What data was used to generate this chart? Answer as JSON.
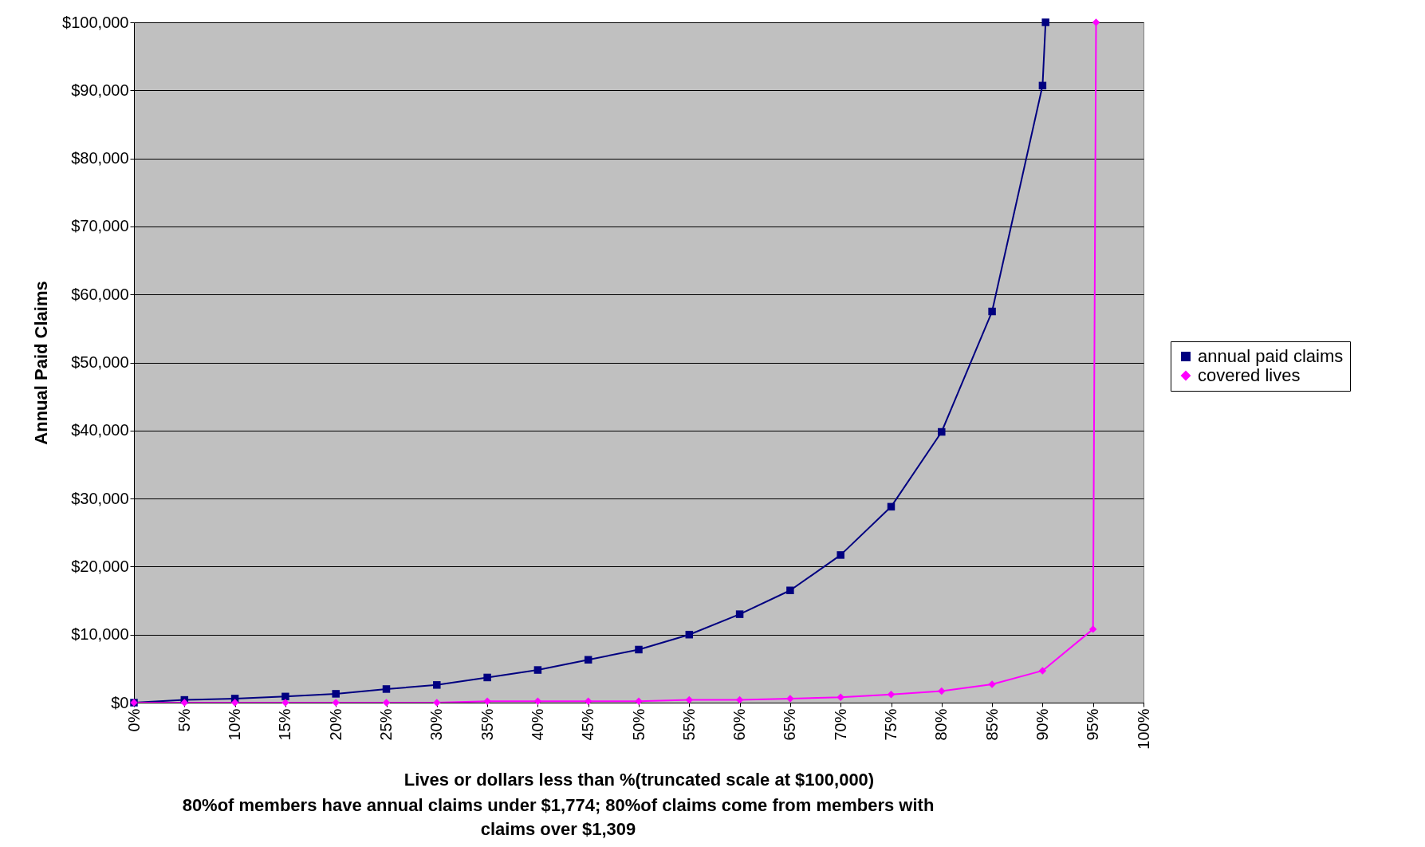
{
  "chart_data": {
    "type": "line",
    "ylabel": "Annual Paid Claims",
    "xlabel": "Lives or dollars less than %(truncated scale at $100,000)",
    "annotations": [
      "80%of members have annual claims under $1,774; 80%of claims come from members with claims over $1,309"
    ],
    "xlim": [
      0,
      100
    ],
    "xticks": [
      {
        "value": 0,
        "label": "0%"
      },
      {
        "value": 5,
        "label": "5%"
      },
      {
        "value": 10,
        "label": "10%"
      },
      {
        "value": 15,
        "label": "15%"
      },
      {
        "value": 20,
        "label": "20%"
      },
      {
        "value": 25,
        "label": "25%"
      },
      {
        "value": 30,
        "label": "30%"
      },
      {
        "value": 35,
        "label": "35%"
      },
      {
        "value": 40,
        "label": "40%"
      },
      {
        "value": 45,
        "label": "45%"
      },
      {
        "value": 50,
        "label": "50%"
      },
      {
        "value": 55,
        "label": "55%"
      },
      {
        "value": 60,
        "label": "60%"
      },
      {
        "value": 65,
        "label": "65%"
      },
      {
        "value": 70,
        "label": "70%"
      },
      {
        "value": 75,
        "label": "75%"
      },
      {
        "value": 80,
        "label": "80%"
      },
      {
        "value": 85,
        "label": "85%"
      },
      {
        "value": 90,
        "label": "90%"
      },
      {
        "value": 95,
        "label": "95%"
      },
      {
        "value": 100,
        "label": "100%"
      }
    ],
    "ylim": [
      0,
      100000
    ],
    "yticks": [
      {
        "value": 0,
        "label": "$0"
      },
      {
        "value": 10000,
        "label": "$10,000"
      },
      {
        "value": 20000,
        "label": "$20,000"
      },
      {
        "value": 30000,
        "label": "$30,000"
      },
      {
        "value": 40000,
        "label": "$40,000"
      },
      {
        "value": 50000,
        "label": "$50,000"
      },
      {
        "value": 60000,
        "label": "$60,000"
      },
      {
        "value": 70000,
        "label": "$70,000"
      },
      {
        "value": 80000,
        "label": "$80,000"
      },
      {
        "value": 90000,
        "label": "$90,000"
      },
      {
        "value": 100000,
        "label": "$100,000"
      }
    ],
    "grid": "y",
    "legend": "right",
    "series": [
      {
        "name": "annual paid claims",
        "color": "#000080",
        "marker": "square",
        "x": [
          0,
          5,
          10,
          15,
          20,
          25,
          30,
          35,
          40,
          45,
          50,
          55,
          60,
          65,
          70,
          75,
          80,
          85,
          90,
          90.3
        ],
        "values": [
          0,
          400,
          600,
          900,
          1300,
          2000,
          2600,
          3700,
          4800,
          6300,
          7800,
          10000,
          13000,
          16500,
          21700,
          28800,
          39800,
          57500,
          90700,
          100000
        ]
      },
      {
        "name": "covered lives",
        "color": "#ff00ff",
        "marker": "diamond",
        "x": [
          0,
          5,
          10,
          15,
          20,
          25,
          30,
          35,
          40,
          45,
          50,
          55,
          60,
          65,
          70,
          75,
          80,
          85,
          90,
          95,
          95.3
        ],
        "values": [
          0,
          0,
          0,
          0,
          0,
          0,
          0,
          200,
          200,
          200,
          200,
          400,
          400,
          600,
          800,
          1200,
          1700,
          2700,
          4700,
          10800,
          100000
        ]
      }
    ]
  }
}
